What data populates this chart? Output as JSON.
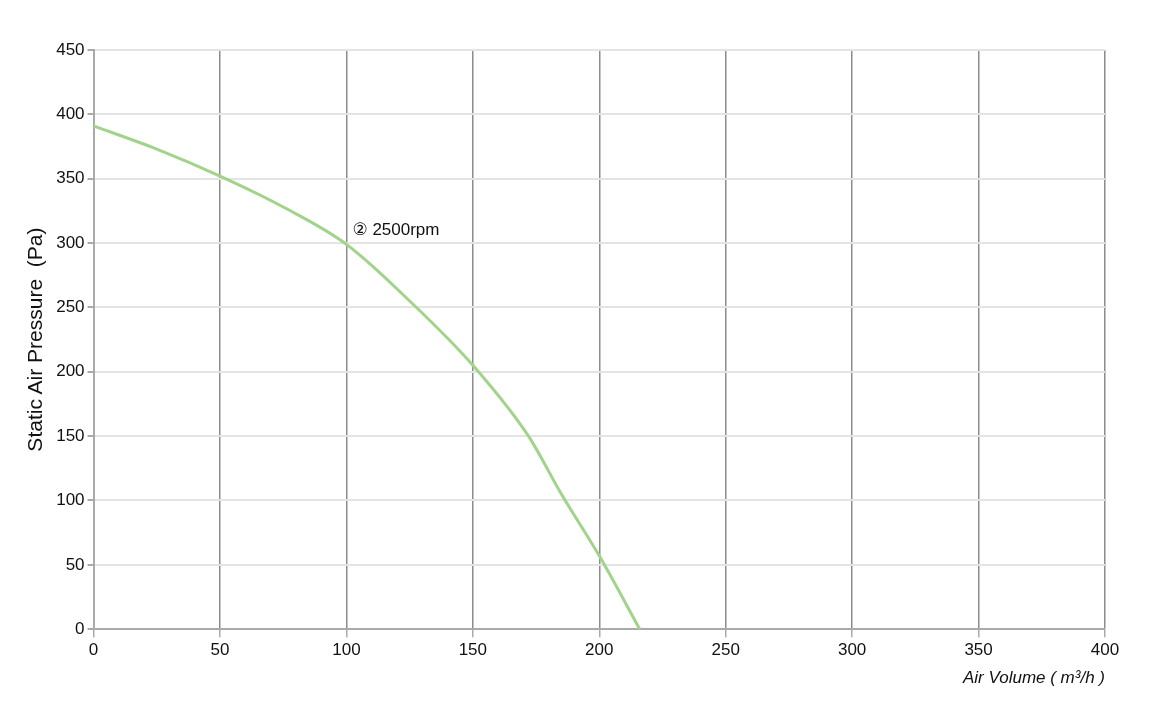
{
  "chart_data": {
    "type": "line",
    "x": [
      0,
      25,
      50,
      75,
      100,
      125,
      150,
      172,
      185,
      200,
      216
    ],
    "series": [
      {
        "color": "#a1d48a",
        "values": [
          391,
          373,
          352,
          328,
          299,
          255,
          205,
          150,
          105,
          57,
          0
        ]
      }
    ],
    "xlabel": "Air Volume ( m³/h )",
    "ylabel": "Static Air Pressure  (Pa)",
    "xlim": [
      0,
      400
    ],
    "xticks": [
      0,
      50,
      100,
      150,
      200,
      250,
      300,
      350,
      400
    ],
    "ylim": [
      0,
      450
    ],
    "yticks": [
      0,
      50,
      100,
      150,
      200,
      250,
      300,
      350,
      400,
      450
    ],
    "annotations": [
      {
        "text": "② 2500rpm",
        "x": 100,
        "y": 300
      }
    ],
    "grid": true,
    "legend": false,
    "marker": "none",
    "line_style": "solid"
  }
}
